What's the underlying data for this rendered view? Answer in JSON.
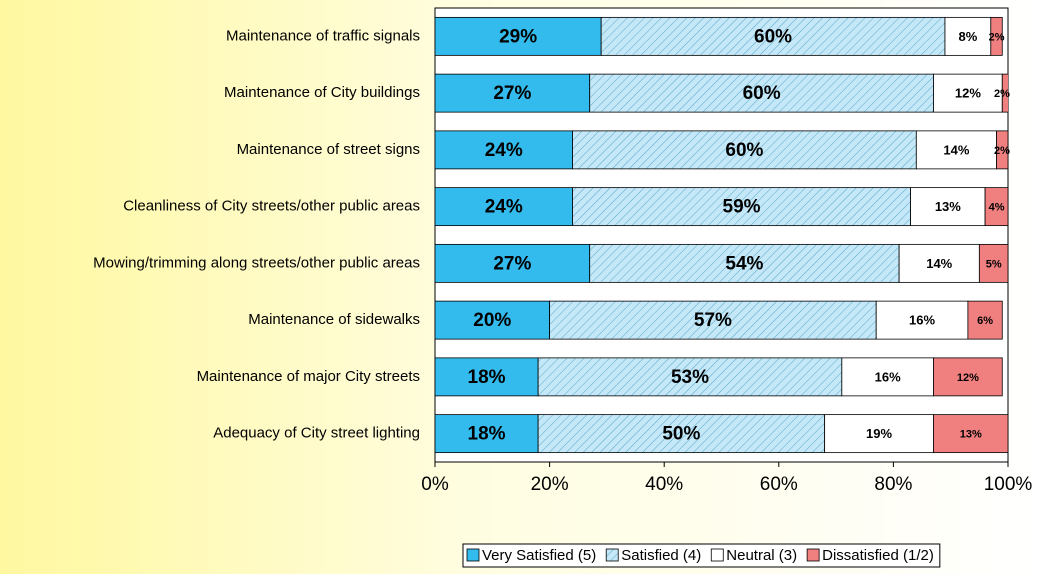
{
  "chart_data": {
    "type": "stacked-bar-horizontal",
    "categories": [
      "Maintenance of traffic signals",
      "Maintenance of City buildings",
      "Maintenance of street signs",
      "Cleanliness of City streets/other public areas",
      "Mowing/trimming along streets/other public areas",
      "Maintenance of sidewalks",
      "Maintenance of major City streets",
      "Adequacy of City street lighting"
    ],
    "series": [
      {
        "name": "Very Satisfied (5)",
        "color": "#33bbee",
        "values": [
          29,
          27,
          24,
          24,
          27,
          20,
          18,
          18
        ],
        "value_labels": [
          "29%",
          "27%",
          "24%",
          "24%",
          "27%",
          "20%",
          "18%",
          "18%"
        ]
      },
      {
        "name": "Satisfied (4)",
        "color": "#c4e8f8",
        "hatch": true,
        "values": [
          60,
          60,
          60,
          59,
          54,
          57,
          53,
          50
        ],
        "value_labels": [
          "60%",
          "60%",
          "60%",
          "59%",
          "54%",
          "57%",
          "53%",
          "50%"
        ]
      },
      {
        "name": "Neutral (3)",
        "color": "#ffffff",
        "values": [
          8,
          12,
          14,
          13,
          14,
          16,
          16,
          19
        ],
        "value_labels": [
          "8%",
          "12%",
          "14%",
          "13%",
          "14%",
          "16%",
          "16%",
          "19%"
        ]
      },
      {
        "name": "Dissatisfied (1/2)",
        "color": "#f08080",
        "values": [
          2,
          2,
          2,
          4,
          5,
          6,
          12,
          13
        ],
        "value_labels": [
          "2%",
          "2%",
          "2%",
          "4%",
          "5%",
          "6%",
          "12%",
          "13%"
        ]
      }
    ],
    "xlim": [
      0,
      100
    ],
    "xticks": [
      {
        "value": 0,
        "label": "0%"
      },
      {
        "value": 20,
        "label": "20%"
      },
      {
        "value": 40,
        "label": "40%"
      },
      {
        "value": 60,
        "label": "60%"
      },
      {
        "value": 80,
        "label": "80%"
      },
      {
        "value": 100,
        "label": "100%"
      }
    ],
    "legend": "bottom"
  }
}
